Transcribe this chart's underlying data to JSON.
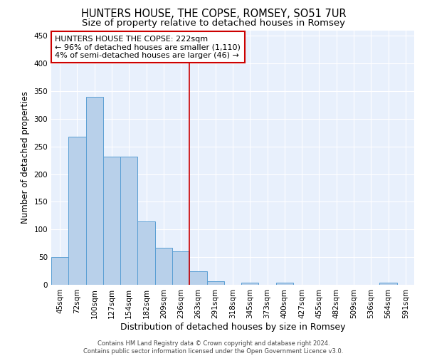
{
  "title": "HUNTERS HOUSE, THE COPSE, ROMSEY, SO51 7UR",
  "subtitle": "Size of property relative to detached houses in Romsey",
  "xlabel": "Distribution of detached houses by size in Romsey",
  "ylabel": "Number of detached properties",
  "categories": [
    "45sqm",
    "72sqm",
    "100sqm",
    "127sqm",
    "154sqm",
    "182sqm",
    "209sqm",
    "236sqm",
    "263sqm",
    "291sqm",
    "318sqm",
    "345sqm",
    "373sqm",
    "400sqm",
    "427sqm",
    "455sqm",
    "482sqm",
    "509sqm",
    "536sqm",
    "564sqm",
    "591sqm"
  ],
  "values": [
    50,
    267,
    340,
    231,
    231,
    114,
    67,
    60,
    25,
    6,
    0,
    4,
    0,
    4,
    0,
    0,
    0,
    0,
    0,
    4,
    0
  ],
  "bar_color": "#b8d0ea",
  "bar_edge_color": "#5a9fd4",
  "background_color": "#e8f0fc",
  "grid_color": "#ffffff",
  "vline_x": 7.5,
  "vline_color": "#cc0000",
  "ylim": [
    0,
    460
  ],
  "annotation_text": "HUNTERS HOUSE THE COPSE: 222sqm\n← 96% of detached houses are smaller (1,110)\n4% of semi-detached houses are larger (46) →",
  "footer_text": "Contains HM Land Registry data © Crown copyright and database right 2024.\nContains public sector information licensed under the Open Government Licence v3.0.",
  "title_fontsize": 10.5,
  "subtitle_fontsize": 9.5,
  "xlabel_fontsize": 9,
  "ylabel_fontsize": 8.5,
  "tick_fontsize": 7.5,
  "annotation_fontsize": 8,
  "footer_fontsize": 6
}
